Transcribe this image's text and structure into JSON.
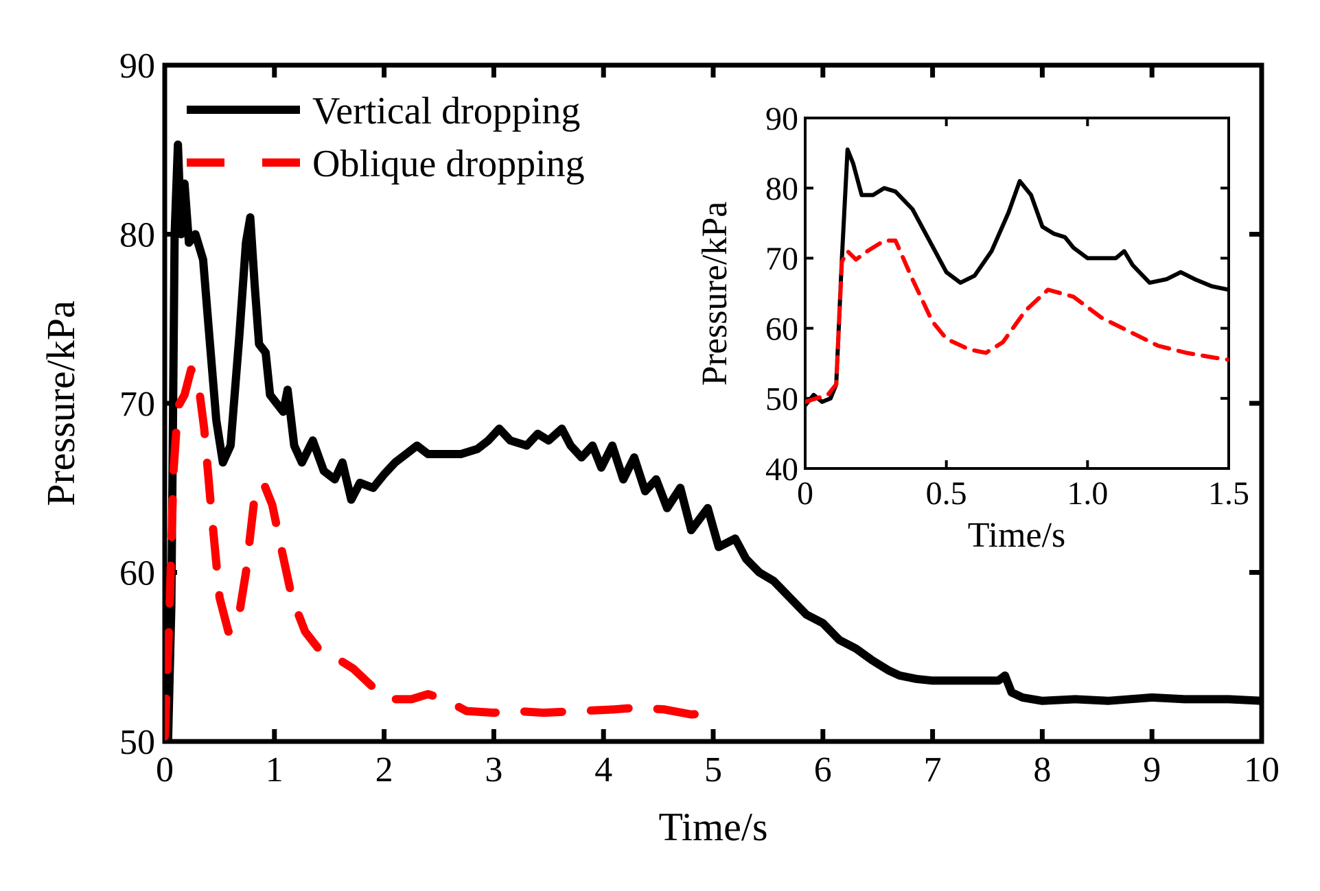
{
  "chart_data": [
    {
      "type": "line",
      "xlabel": "Time/s",
      "ylabel": "Pressure/kPa",
      "xlim": [
        0,
        10
      ],
      "ylim": [
        50,
        90
      ],
      "xticks": [
        "0",
        "1",
        "2",
        "3",
        "4",
        "5",
        "6",
        "7",
        "8",
        "9",
        "10"
      ],
      "yticks": [
        "50",
        "60",
        "70",
        "80",
        "90"
      ],
      "legend": "top-left",
      "grid": false,
      "series": [
        {
          "name": "Vertical dropping",
          "color": "#000000",
          "style": "solid",
          "points": [
            [
              0.0,
              50.5
            ],
            [
              0.03,
              50.0
            ],
            [
              0.06,
              58.0
            ],
            [
              0.09,
              80.0
            ],
            [
              0.12,
              85.3
            ],
            [
              0.15,
              80.0
            ],
            [
              0.18,
              83.0
            ],
            [
              0.22,
              79.5
            ],
            [
              0.28,
              80.0
            ],
            [
              0.35,
              78.5
            ],
            [
              0.4,
              74.5
            ],
            [
              0.47,
              69.0
            ],
            [
              0.53,
              66.5
            ],
            [
              0.6,
              67.5
            ],
            [
              0.68,
              74.0
            ],
            [
              0.74,
              79.5
            ],
            [
              0.78,
              81.0
            ],
            [
              0.82,
              77.0
            ],
            [
              0.86,
              73.5
            ],
            [
              0.92,
              73.0
            ],
            [
              0.96,
              70.5
            ],
            [
              1.02,
              70.0
            ],
            [
              1.08,
              69.5
            ],
            [
              1.12,
              70.8
            ],
            [
              1.18,
              67.5
            ],
            [
              1.25,
              66.5
            ],
            [
              1.35,
              67.8
            ],
            [
              1.45,
              66.0
            ],
            [
              1.55,
              65.5
            ],
            [
              1.62,
              66.5
            ],
            [
              1.7,
              64.3
            ],
            [
              1.78,
              65.3
            ],
            [
              1.9,
              65.0
            ],
            [
              2.0,
              65.8
            ],
            [
              2.1,
              66.5
            ],
            [
              2.2,
              67.0
            ],
            [
              2.3,
              67.5
            ],
            [
              2.4,
              67.0
            ],
            [
              2.55,
              67.0
            ],
            [
              2.7,
              67.0
            ],
            [
              2.85,
              67.3
            ],
            [
              2.95,
              67.8
            ],
            [
              3.05,
              68.5
            ],
            [
              3.15,
              67.8
            ],
            [
              3.3,
              67.5
            ],
            [
              3.4,
              68.2
            ],
            [
              3.5,
              67.8
            ],
            [
              3.62,
              68.5
            ],
            [
              3.7,
              67.5
            ],
            [
              3.8,
              66.8
            ],
            [
              3.9,
              67.5
            ],
            [
              3.98,
              66.2
            ],
            [
              4.08,
              67.5
            ],
            [
              4.18,
              65.5
            ],
            [
              4.28,
              66.8
            ],
            [
              4.38,
              64.8
            ],
            [
              4.48,
              65.5
            ],
            [
              4.58,
              63.8
            ],
            [
              4.7,
              65.0
            ],
            [
              4.8,
              62.5
            ],
            [
              4.95,
              63.8
            ],
            [
              5.05,
              61.5
            ],
            [
              5.2,
              62.0
            ],
            [
              5.3,
              60.8
            ],
            [
              5.42,
              60.0
            ],
            [
              5.55,
              59.5
            ],
            [
              5.7,
              58.5
            ],
            [
              5.85,
              57.5
            ],
            [
              6.0,
              57.0
            ],
            [
              6.15,
              56.0
            ],
            [
              6.3,
              55.5
            ],
            [
              6.45,
              54.8
            ],
            [
              6.6,
              54.2
            ],
            [
              6.7,
              53.9
            ],
            [
              6.85,
              53.7
            ],
            [
              7.0,
              53.6
            ],
            [
              7.3,
              53.6
            ],
            [
              7.6,
              53.6
            ],
            [
              7.66,
              53.9
            ],
            [
              7.72,
              52.9
            ],
            [
              7.82,
              52.6
            ],
            [
              8.0,
              52.4
            ],
            [
              8.3,
              52.5
            ],
            [
              8.6,
              52.4
            ],
            [
              9.0,
              52.6
            ],
            [
              9.3,
              52.5
            ],
            [
              9.7,
              52.5
            ],
            [
              10.0,
              52.4
            ]
          ]
        },
        {
          "name": "Oblique dropping",
          "color": "#ff0000",
          "style": "dashed",
          "points": [
            [
              0.0,
              50.3
            ],
            [
              0.04,
              57.0
            ],
            [
              0.08,
              66.0
            ],
            [
              0.12,
              69.8
            ],
            [
              0.18,
              70.5
            ],
            [
              0.24,
              72.0
            ],
            [
              0.3,
              71.5
            ],
            [
              0.36,
              68.5
            ],
            [
              0.42,
              64.0
            ],
            [
              0.5,
              58.5
            ],
            [
              0.58,
              56.5
            ],
            [
              0.66,
              56.8
            ],
            [
              0.74,
              60.0
            ],
            [
              0.82,
              64.5
            ],
            [
              0.9,
              65.3
            ],
            [
              0.98,
              64.0
            ],
            [
              1.06,
              61.5
            ],
            [
              1.16,
              58.5
            ],
            [
              1.28,
              56.5
            ],
            [
              1.4,
              55.5
            ],
            [
              1.55,
              55.0
            ],
            [
              1.72,
              54.3
            ],
            [
              1.9,
              53.2
            ],
            [
              2.05,
              52.5
            ],
            [
              2.25,
              52.5
            ],
            [
              2.4,
              52.8
            ],
            [
              2.55,
              52.5
            ],
            [
              2.75,
              51.8
            ],
            [
              3.0,
              51.7
            ],
            [
              3.2,
              51.8
            ],
            [
              3.45,
              51.7
            ],
            [
              3.8,
              51.8
            ],
            [
              4.1,
              51.9
            ],
            [
              4.3,
              52.0
            ],
            [
              4.55,
              51.9
            ],
            [
              4.8,
              51.6
            ],
            [
              5.05,
              51.7
            ]
          ]
        }
      ]
    },
    {
      "type": "line",
      "inset": true,
      "xlabel": "Time/s",
      "ylabel": "Pressure/kPa",
      "xlim": [
        0,
        1.5
      ],
      "ylim": [
        40,
        90
      ],
      "xticks": [
        "0",
        "0.5",
        "1.0",
        "1.5"
      ],
      "yticks": [
        "40",
        "50",
        "60",
        "70",
        "80",
        "90"
      ],
      "grid": false,
      "series": [
        {
          "name": "Vertical dropping",
          "color": "#000000",
          "style": "solid",
          "points": [
            [
              0.0,
              49.0
            ],
            [
              0.03,
              50.5
            ],
            [
              0.06,
              49.5
            ],
            [
              0.09,
              50.0
            ],
            [
              0.11,
              52.0
            ],
            [
              0.13,
              70.0
            ],
            [
              0.15,
              85.5
            ],
            [
              0.17,
              83.5
            ],
            [
              0.2,
              79.0
            ],
            [
              0.24,
              79.0
            ],
            [
              0.28,
              80.0
            ],
            [
              0.32,
              79.5
            ],
            [
              0.38,
              77.0
            ],
            [
              0.44,
              72.5
            ],
            [
              0.5,
              68.0
            ],
            [
              0.55,
              66.5
            ],
            [
              0.6,
              67.5
            ],
            [
              0.66,
              71.0
            ],
            [
              0.72,
              76.5
            ],
            [
              0.76,
              81.0
            ],
            [
              0.8,
              79.0
            ],
            [
              0.84,
              74.5
            ],
            [
              0.88,
              73.5
            ],
            [
              0.92,
              73.0
            ],
            [
              0.95,
              71.5
            ],
            [
              1.0,
              70.0
            ],
            [
              1.06,
              70.0
            ],
            [
              1.1,
              70.0
            ],
            [
              1.13,
              71.0
            ],
            [
              1.16,
              69.0
            ],
            [
              1.22,
              66.5
            ],
            [
              1.28,
              67.0
            ],
            [
              1.33,
              68.0
            ],
            [
              1.38,
              67.0
            ],
            [
              1.44,
              66.0
            ],
            [
              1.5,
              65.5
            ]
          ]
        },
        {
          "name": "Oblique dropping",
          "color": "#ff0000",
          "style": "dashed",
          "points": [
            [
              0.0,
              49.5
            ],
            [
              0.04,
              50.0
            ],
            [
              0.08,
              50.5
            ],
            [
              0.11,
              52.0
            ],
            [
              0.13,
              69.5
            ],
            [
              0.15,
              71.0
            ],
            [
              0.18,
              69.8
            ],
            [
              0.22,
              71.0
            ],
            [
              0.28,
              72.5
            ],
            [
              0.32,
              72.5
            ],
            [
              0.38,
              67.0
            ],
            [
              0.45,
              61.0
            ],
            [
              0.5,
              58.5
            ],
            [
              0.58,
              57.0
            ],
            [
              0.64,
              56.5
            ],
            [
              0.7,
              58.0
            ],
            [
              0.78,
              62.5
            ],
            [
              0.86,
              65.5
            ],
            [
              0.95,
              64.5
            ],
            [
              1.05,
              61.5
            ],
            [
              1.15,
              59.5
            ],
            [
              1.25,
              57.5
            ],
            [
              1.35,
              56.5
            ],
            [
              1.45,
              55.8
            ],
            [
              1.5,
              55.5
            ]
          ]
        }
      ]
    }
  ]
}
